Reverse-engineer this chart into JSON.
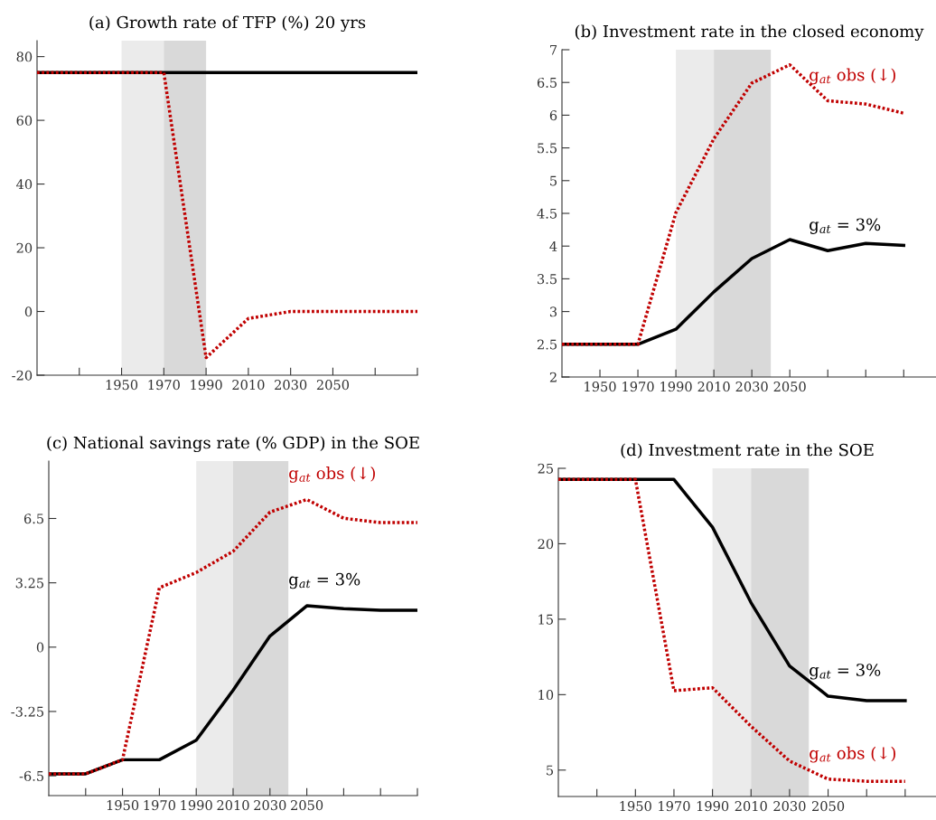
{
  "chart_data": [
    {
      "type": "line",
      "title": "(a) Growth rate of TFP (%) 20 yrs",
      "xlim": [
        1910,
        2090
      ],
      "xticks": [
        {
          "value": 1930,
          "label": null
        },
        1950,
        1970,
        1990,
        2010,
        2030,
        2050,
        {
          "value": 2070,
          "label": null
        },
        {
          "value": 2090,
          "label": null
        }
      ],
      "ylim": [
        -20,
        85
      ],
      "yticks": [
        -20,
        0,
        20,
        40,
        60,
        80
      ],
      "grid": false,
      "legend": false,
      "bands": [
        {
          "axis": "x",
          "from": 1950,
          "to": 1970,
          "color": "#ebebeb"
        },
        {
          "axis": "x",
          "from": 1970,
          "to": 1990,
          "color": "#d9d9d9"
        }
      ],
      "series": [
        {
          "color": "#000000",
          "line_style": "solid",
          "x": [
            1910,
            1930,
            1950,
            1970,
            1990,
            2010,
            2030,
            2050,
            2070,
            2090
          ],
          "values": [
            75,
            75,
            75,
            75,
            75,
            75,
            75,
            75,
            75,
            75
          ]
        },
        {
          "color": "#c00000",
          "line_style": "dotted",
          "x": [
            1910,
            1930,
            1950,
            1970,
            1990,
            2010,
            2030,
            2050,
            2070,
            2090
          ],
          "values": [
            75,
            75,
            75,
            75,
            -14.5,
            -2.2,
            0,
            0,
            0,
            0
          ]
        }
      ]
    },
    {
      "type": "line",
      "title": "(b) Investment rate in the closed economy",
      "xlim": [
        1930,
        2127
      ],
      "xticks": [
        1950,
        1970,
        1990,
        2010,
        2030,
        2050,
        {
          "value": 2070,
          "label": null
        },
        {
          "value": 2090,
          "label": null
        },
        {
          "value": 2110,
          "label": null
        }
      ],
      "ylim": [
        2,
        7
      ],
      "yticks": [
        2,
        2.5,
        3,
        3.5,
        4,
        4.5,
        5,
        5.5,
        6,
        6.5,
        7
      ],
      "grid": false,
      "legend": false,
      "bands": [
        {
          "axis": "x",
          "from": 1990,
          "to": 2010,
          "color": "#ebebeb"
        },
        {
          "axis": "x",
          "from": 2010,
          "to": 2040,
          "color": "#d9d9d9"
        }
      ],
      "series": [
        {
          "name": "g$_{at}$ = 3%",
          "color": "#000000",
          "line_style": "solid",
          "x": [
            1930,
            1950,
            1970,
            1990,
            2010,
            2030,
            2050,
            2070,
            2090,
            2110
          ],
          "values": [
            2.5,
            2.5,
            2.5,
            2.73,
            3.3,
            3.81,
            4.1,
            3.93,
            4.04,
            4.01
          ]
        },
        {
          "name": "g$_{at}$ obs (↓)",
          "color": "#c00000",
          "line_style": "dotted",
          "x": [
            1930,
            1950,
            1970,
            1990,
            2010,
            2030,
            2050,
            2070,
            2090,
            2110
          ],
          "values": [
            2.5,
            2.5,
            2.5,
            4.51,
            5.64,
            6.49,
            6.77,
            6.22,
            6.17,
            6.03
          ]
        }
      ]
    },
    {
      "type": "line",
      "title": "(c) National savings rate (% GDP) in the SOE",
      "xlim": [
        1910,
        2110
      ],
      "xticks": [
        {
          "value": 1930,
          "label": null
        },
        1950,
        1970,
        1990,
        2010,
        2030,
        2050,
        {
          "value": 2070,
          "label": null
        },
        {
          "value": 2090,
          "label": null
        },
        {
          "value": 2110,
          "label": null
        }
      ],
      "ylim": [
        -7.5,
        9.4
      ],
      "yticks": [
        -6.5,
        -3.25,
        0,
        3.25,
        6.5
      ],
      "grid": false,
      "legend": false,
      "bands": [
        {
          "axis": "x",
          "from": 1990,
          "to": 2010,
          "color": "#ebebeb"
        },
        {
          "axis": "x",
          "from": 2010,
          "to": 2040,
          "color": "#d9d9d9"
        }
      ],
      "series": [
        {
          "name": "g$_{at}$ = 3%",
          "color": "#000000",
          "line_style": "solid",
          "x": [
            1910,
            1930,
            1950,
            1970,
            1990,
            2010,
            2030,
            2050,
            2070,
            2090,
            2110
          ],
          "values": [
            -6.4,
            -6.4,
            -5.69,
            -5.69,
            -4.7,
            -2.18,
            0.56,
            2.09,
            1.94,
            1.86,
            1.86
          ]
        },
        {
          "name": "g$_{at}$ obs (↓)",
          "color": "#c00000",
          "line_style": "dotted",
          "x": [
            1910,
            1930,
            1950,
            1970,
            1990,
            2010,
            2030,
            2050,
            2070,
            2090,
            2110
          ],
          "values": [
            -6.4,
            -6.4,
            -5.69,
            3.0,
            3.77,
            4.84,
            6.82,
            7.46,
            6.51,
            6.29,
            6.29
          ]
        }
      ]
    },
    {
      "type": "line",
      "title": "(d) Investment rate in the SOE",
      "xlim": [
        1910,
        2106
      ],
      "xticks": [
        {
          "value": 1930,
          "label": null
        },
        1950,
        1970,
        1990,
        2010,
        2030,
        2050,
        {
          "value": 2070,
          "label": null
        },
        {
          "value": 2090,
          "label": null
        }
      ],
      "ylim": [
        3.25,
        25
      ],
      "yticks": [
        5,
        10,
        15,
        20,
        25
      ],
      "grid": false,
      "legend": false,
      "bands": [
        {
          "axis": "x",
          "from": 1990,
          "to": 2010,
          "color": "#ebebeb"
        },
        {
          "axis": "x",
          "from": 2010,
          "to": 2040,
          "color": "#d9d9d9"
        }
      ],
      "series": [
        {
          "name": "g$_{at}$ = 3%",
          "color": "#000000",
          "line_style": "solid",
          "x": [
            1910,
            1930,
            1950,
            1970,
            1990,
            2010,
            2030,
            2050,
            2070,
            2090
          ],
          "values": [
            24.26,
            24.26,
            24.26,
            24.26,
            21.1,
            16.1,
            11.9,
            9.9,
            9.6,
            9.6
          ]
        },
        {
          "name": "g$_{at}$ obs (↓)",
          "color": "#c00000",
          "line_style": "dotted",
          "x": [
            1910,
            1930,
            1950,
            1970,
            1990,
            2010,
            2030,
            2050,
            2070,
            2090
          ],
          "values": [
            24.26,
            24.26,
            24.26,
            10.26,
            10.46,
            7.9,
            5.6,
            4.4,
            4.26,
            4.26
          ]
        }
      ]
    }
  ]
}
